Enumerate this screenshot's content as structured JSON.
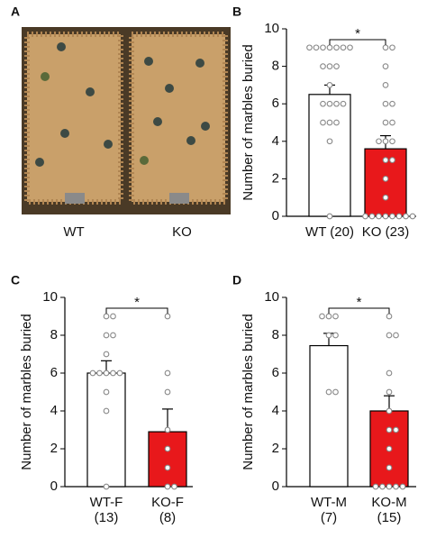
{
  "photo": {
    "panel_label": "A",
    "labels": [
      "WT",
      "KO"
    ]
  },
  "chart_data": [
    {
      "type": "bar",
      "panel_label": "B",
      "ylabel": "Number of marbles buried",
      "categories": [
        "WT (20)",
        "KO (23)"
      ],
      "values": [
        6.5,
        3.6
      ],
      "errors": [
        0.5,
        0.7
      ],
      "colors": [
        "#ffffff",
        "#e8181b"
      ],
      "points": [
        [
          9,
          9,
          9,
          9,
          9,
          9,
          9,
          8,
          8,
          8,
          7,
          6,
          6,
          6,
          6,
          5,
          5,
          5,
          4,
          0
        ],
        [
          9,
          9,
          8,
          7,
          6,
          6,
          5,
          5,
          4,
          4,
          4,
          3,
          3,
          2,
          1,
          0,
          0,
          0,
          0,
          0,
          0,
          0,
          0
        ]
      ],
      "annotation": "*",
      "ylim": [
        0,
        10
      ],
      "yticks": [
        0,
        2,
        4,
        6,
        8,
        10
      ]
    },
    {
      "type": "bar",
      "panel_label": "C",
      "ylabel": "Number of marbles buried",
      "categories": [
        "WT-F",
        "KO-F"
      ],
      "category_notes": [
        "(13)",
        "(8)"
      ],
      "values": [
        6.0,
        2.9
      ],
      "errors": [
        0.65,
        1.2
      ],
      "colors": [
        "#ffffff",
        "#e8181b"
      ],
      "points": [
        [
          9,
          9,
          8,
          8,
          7,
          6,
          6,
          6,
          6,
          6,
          5,
          4,
          0
        ],
        [
          9,
          6,
          5,
          3,
          2,
          1,
          0,
          0
        ]
      ],
      "annotation": "*",
      "ylim": [
        0,
        10
      ],
      "yticks": [
        0,
        2,
        4,
        6,
        8,
        10
      ]
    },
    {
      "type": "bar",
      "panel_label": "D",
      "ylabel": "Number of marbles buried",
      "categories": [
        "WT-M",
        "KO-M"
      ],
      "category_notes": [
        "(7)",
        "(15)"
      ],
      "values": [
        7.45,
        4.0
      ],
      "errors": [
        0.65,
        0.8
      ],
      "colors": [
        "#ffffff",
        "#e8181b"
      ],
      "points": [
        [
          9,
          9,
          9,
          8,
          8,
          5,
          5
        ],
        [
          9,
          8,
          8,
          6,
          5,
          4,
          3,
          3,
          2,
          1,
          0,
          0,
          0,
          0,
          0
        ]
      ],
      "annotation": "*",
      "ylim": [
        0,
        10
      ],
      "yticks": [
        0,
        2,
        4,
        6,
        8,
        10
      ]
    }
  ]
}
